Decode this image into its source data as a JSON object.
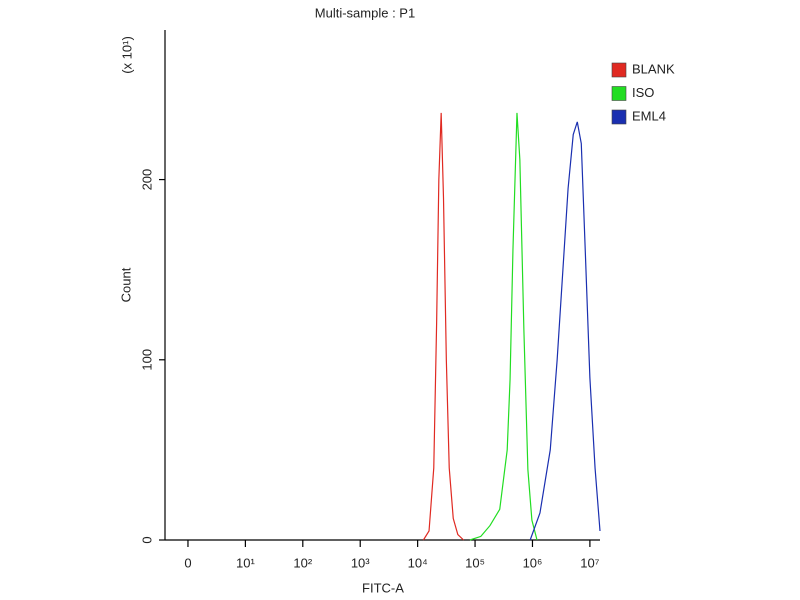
{
  "chart_data": {
    "type": "histogram-overlay",
    "title": "Multi-sample : P1",
    "x_label": "FITC-A",
    "y_label": "Count",
    "y_multiplier": "(x 10¹)",
    "xscale": "biexponential",
    "xlim": [
      -0.4,
      15000000
    ],
    "xticks": [
      0,
      {
        "value": 10,
        "label": "10¹"
      },
      {
        "value": 100,
        "label": "10²"
      },
      {
        "value": 1000,
        "label": "10³"
      },
      {
        "value": 10000,
        "label": "10⁴"
      },
      {
        "value": 100000,
        "label": "10⁵"
      },
      {
        "value": 1000000,
        "label": "10⁶"
      },
      {
        "value": 10000000,
        "label": "10⁷"
      }
    ],
    "ylim": [
      0,
      283
    ],
    "yticks": [
      0,
      100,
      200
    ],
    "legend": "right",
    "series": [
      {
        "name": "BLANK",
        "color": "#e02a22",
        "x": [
          12600,
          15800,
          19100,
          21400,
          23400,
          25700,
          28200,
          31600,
          35500,
          41700,
          50100,
          63100
        ],
        "values": [
          0,
          5,
          40,
          120,
          200,
          237,
          190,
          100,
          40,
          12,
          3,
          0
        ]
      },
      {
        "name": "ISO",
        "color": "#22dd22",
        "x": [
          81300,
          126000,
          182000,
          269000,
          363000,
          407000,
          457000,
          537000,
          603000,
          708000,
          832000,
          977000,
          1200000
        ],
        "values": [
          0,
          2,
          8,
          17,
          50,
          89,
          161,
          237,
          211,
          117,
          39,
          11,
          0
        ]
      },
      {
        "name": "EML4",
        "color": "#1a2fb0",
        "x": [
          912000,
          1350000,
          2040000,
          2690000,
          3390000,
          4170000,
          5130000,
          6030000,
          7080000,
          8320000,
          10000000,
          12300000,
          15000000
        ],
        "values": [
          0,
          15,
          50,
          100,
          150,
          195,
          225,
          232,
          220,
          160,
          90,
          40,
          5
        ]
      }
    ]
  }
}
